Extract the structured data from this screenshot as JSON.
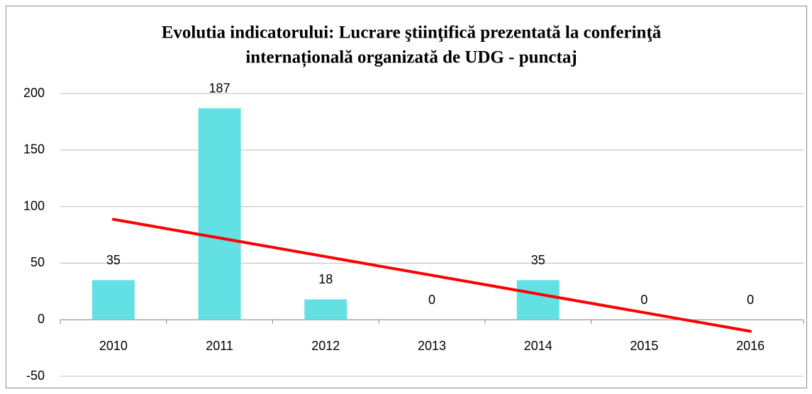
{
  "chart_data": {
    "type": "bar",
    "title": [
      "Evolutia indicatorului: Lucrare ştiinţifică prezentată la conferinţă",
      "internațională organizată de UDG - punctaj"
    ],
    "categories": [
      "2010",
      "2011",
      "2012",
      "2013",
      "2014",
      "2015",
      "2016"
    ],
    "values": [
      35,
      187,
      18,
      0,
      35,
      0,
      0
    ],
    "color": "#63e0e3",
    "trendline": true,
    "trendline_color": "#ff0000",
    "ylim": [
      -50,
      200
    ],
    "yticks": [
      -50,
      0,
      50,
      100,
      150,
      200
    ],
    "grid": true
  }
}
